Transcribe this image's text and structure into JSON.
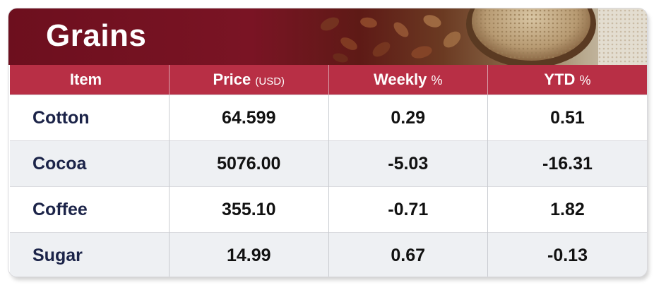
{
  "chart_data": {
    "type": "table",
    "title": "Grains",
    "columns": [
      {
        "label": "Item",
        "unit": ""
      },
      {
        "label": "Price",
        "unit": "(USD)"
      },
      {
        "label": "Weekly",
        "unit": "%"
      },
      {
        "label": "YTD",
        "unit": "%"
      }
    ],
    "rows": [
      {
        "item": "Cotton",
        "price": "64.599",
        "weekly": "0.29",
        "ytd": "0.51"
      },
      {
        "item": "Cocoa",
        "price": "5076.00",
        "weekly": "-5.03",
        "ytd": "-16.31"
      },
      {
        "item": "Coffee",
        "price": "355.10",
        "weekly": "-0.71",
        "ytd": "1.82"
      },
      {
        "item": "Sugar",
        "price": "14.99",
        "weekly": "0.67",
        "ytd": "-0.13"
      }
    ]
  },
  "colors": {
    "banner": "#6d0f1e",
    "header": "#b82f45",
    "row_alt": "#eef0f3",
    "item_text": "#1b2348"
  },
  "icons": {
    "banner_image": "nuts-and-grains-photo"
  }
}
